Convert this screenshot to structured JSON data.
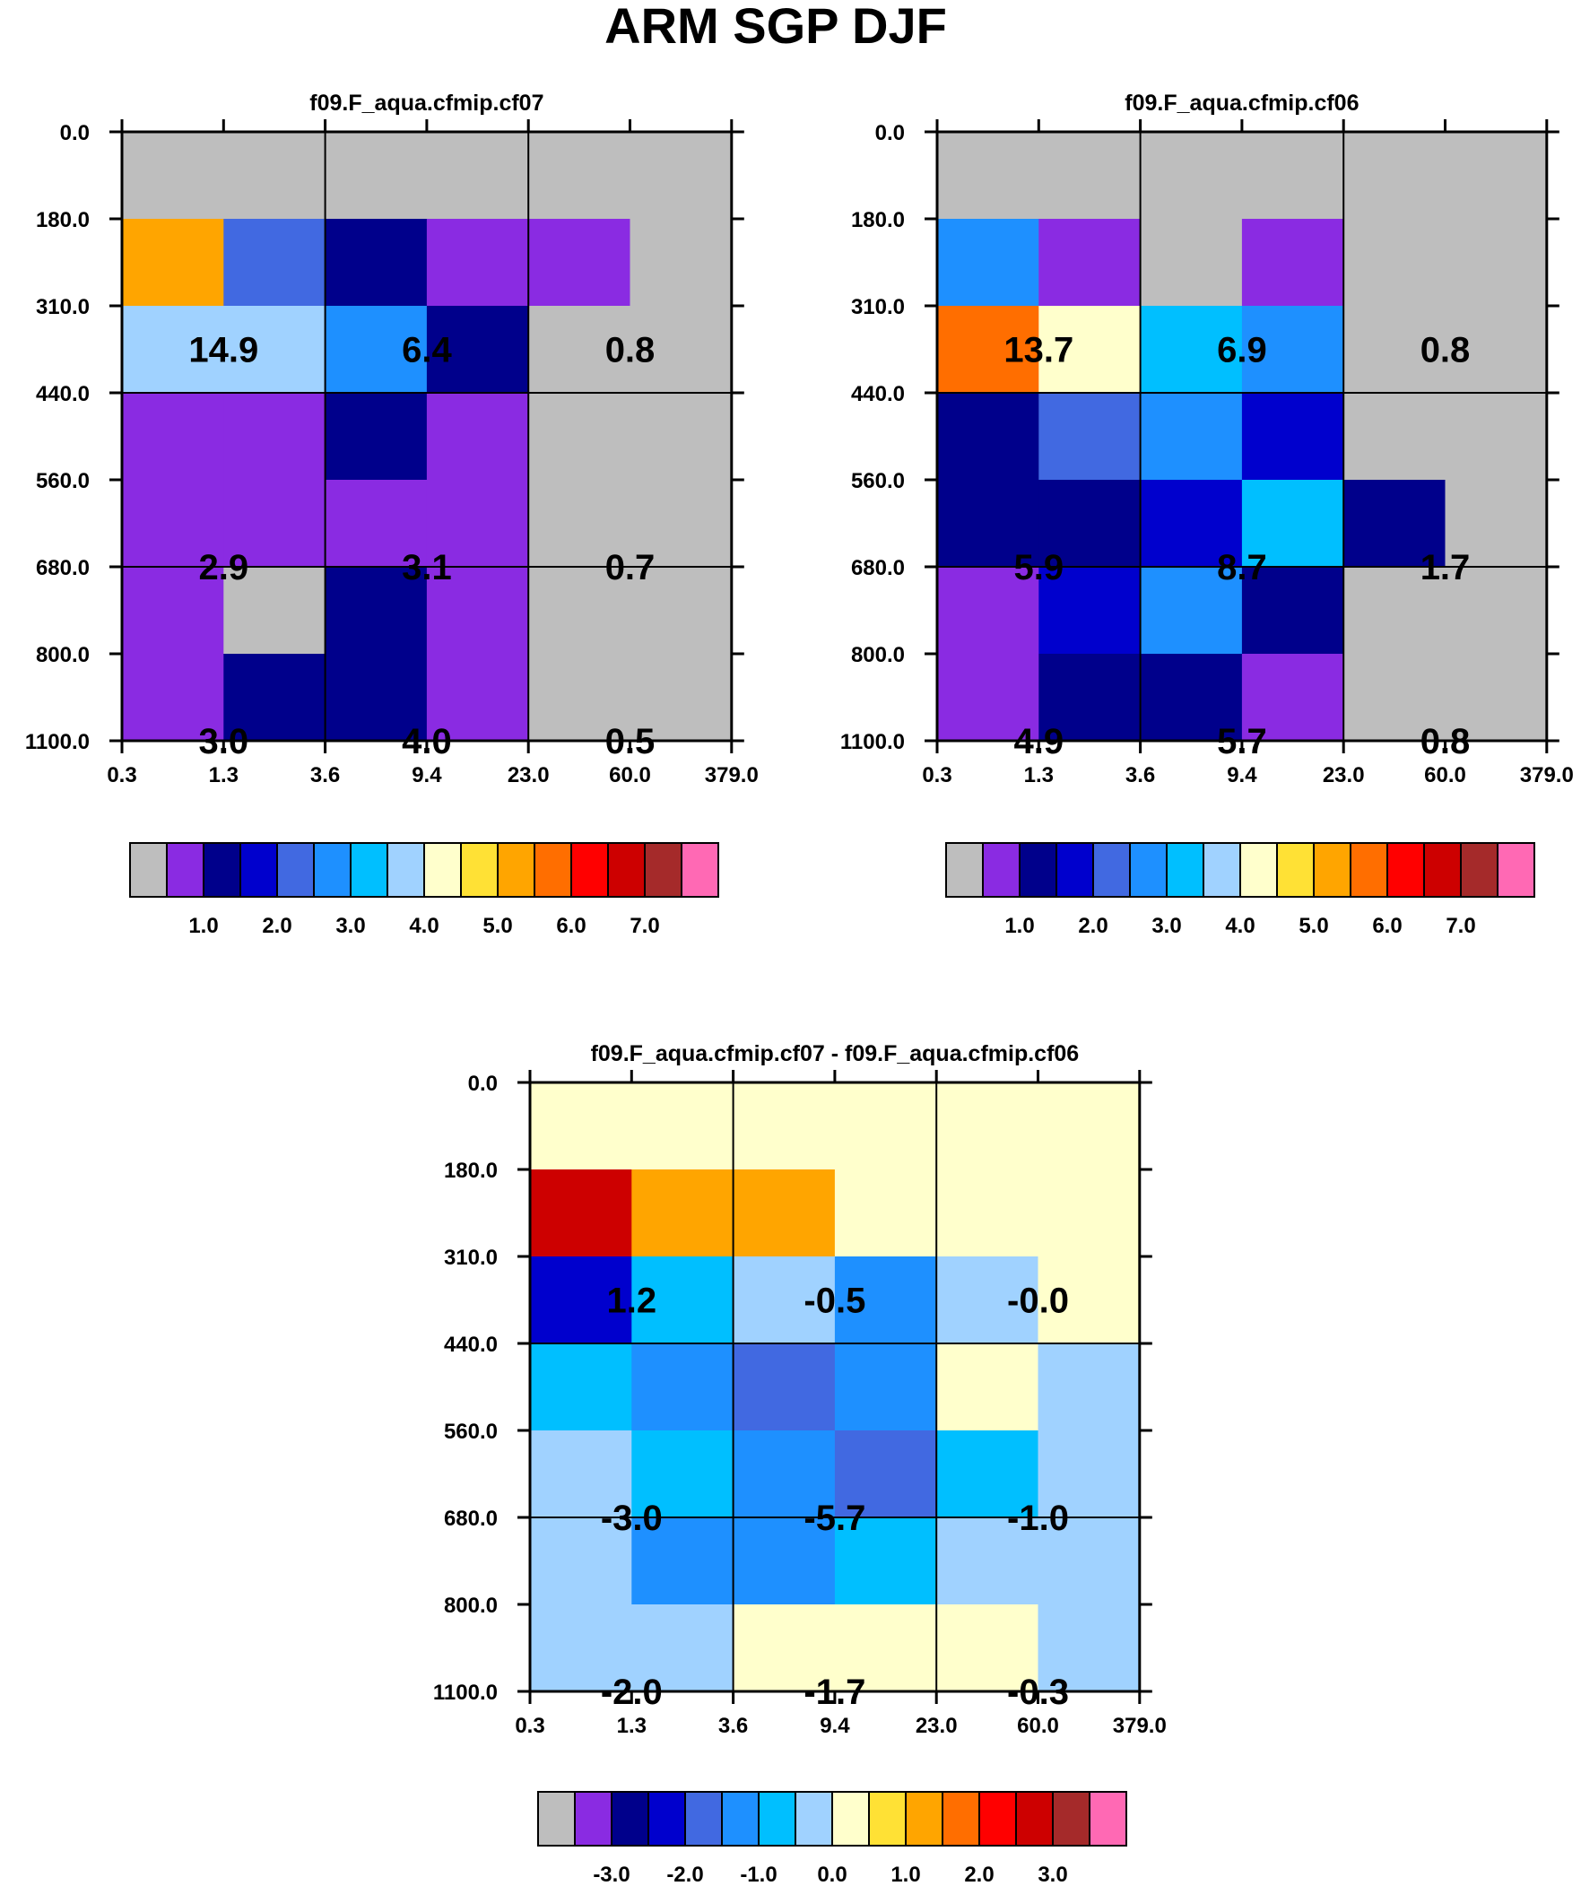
{
  "figure_title": "ARM SGP DJF",
  "colors": {
    "palette": [
      "#bebebe",
      "#8a2be2",
      "#00008b",
      "#0000cd",
      "#4169e1",
      "#1e90ff",
      "#00bfff",
      "#a0d2ff",
      "#ffffcc",
      "#ffe135",
      "#ffa500",
      "#ff6e00",
      "#ff0000",
      "#cd0000",
      "#a52a2a",
      "#ff69b4"
    ],
    "grid": "#000000"
  },
  "chart_data": [
    {
      "type": "heatmap",
      "title": "f09.F_aqua.cfmip.cf07",
      "x_ticks": [
        "0.3",
        "1.3",
        "3.6",
        "9.4",
        "23.0",
        "60.0",
        "379.0"
      ],
      "y_ticks": [
        "0.0",
        "180.0",
        "310.0",
        "440.0",
        "560.0",
        "680.0",
        "800.0",
        "1100.0"
      ],
      "cells": [
        [
          0,
          0,
          0,
          0,
          0,
          0
        ],
        [
          10,
          4,
          2,
          1,
          1,
          0
        ],
        [
          7,
          7,
          5,
          2,
          0,
          0
        ],
        [
          1,
          1,
          2,
          1,
          0,
          0
        ],
        [
          1,
          1,
          1,
          1,
          0,
          0
        ],
        [
          1,
          0,
          2,
          1,
          0,
          0
        ],
        [
          1,
          2,
          2,
          1,
          0,
          0
        ]
      ],
      "block_values": [
        [
          "14.9",
          "6.4",
          "0.8"
        ],
        [
          "2.9",
          "3.1",
          "0.7"
        ],
        [
          "3.0",
          "4.0",
          "0.5"
        ]
      ],
      "colorbar_labels": [
        "1.0",
        "2.0",
        "3.0",
        "4.0",
        "5.0",
        "6.0",
        "7.0"
      ]
    },
    {
      "type": "heatmap",
      "title": "f09.F_aqua.cfmip.cf06",
      "x_ticks": [
        "0.3",
        "1.3",
        "3.6",
        "9.4",
        "23.0",
        "60.0",
        "379.0"
      ],
      "y_ticks": [
        "0.0",
        "180.0",
        "310.0",
        "440.0",
        "560.0",
        "680.0",
        "800.0",
        "1100.0"
      ],
      "cells": [
        [
          0,
          0,
          0,
          0,
          0,
          0
        ],
        [
          5,
          1,
          0,
          1,
          0,
          0
        ],
        [
          11,
          8,
          6,
          5,
          0,
          0
        ],
        [
          2,
          4,
          5,
          3,
          0,
          0
        ],
        [
          2,
          2,
          3,
          6,
          2,
          0
        ],
        [
          1,
          3,
          5,
          2,
          0,
          0
        ],
        [
          1,
          2,
          2,
          1,
          0,
          0
        ]
      ],
      "block_values": [
        [
          "13.7",
          "6.9",
          "0.8"
        ],
        [
          "5.9",
          "8.7",
          "1.7"
        ],
        [
          "4.9",
          "5.7",
          "0.8"
        ]
      ],
      "colorbar_labels": [
        "1.0",
        "2.0",
        "3.0",
        "4.0",
        "5.0",
        "6.0",
        "7.0"
      ]
    },
    {
      "type": "heatmap",
      "title": "f09.F_aqua.cfmip.cf07 - f09.F_aqua.cfmip.cf06",
      "x_ticks": [
        "0.3",
        "1.3",
        "3.6",
        "9.4",
        "23.0",
        "60.0",
        "379.0"
      ],
      "y_ticks": [
        "0.0",
        "180.0",
        "310.0",
        "440.0",
        "560.0",
        "680.0",
        "800.0",
        "1100.0"
      ],
      "cells": [
        [
          8,
          8,
          8,
          8,
          8,
          8
        ],
        [
          13,
          10,
          10,
          8,
          8,
          8
        ],
        [
          3,
          6,
          7,
          5,
          7,
          8
        ],
        [
          6,
          5,
          4,
          5,
          8,
          7
        ],
        [
          7,
          6,
          5,
          4,
          6,
          7
        ],
        [
          7,
          5,
          5,
          6,
          7,
          7
        ],
        [
          7,
          7,
          8,
          8,
          8,
          7
        ]
      ],
      "block_values": [
        [
          "1.2",
          "-0.5",
          "-0.0"
        ],
        [
          "-3.0",
          "-5.7",
          "-1.0"
        ],
        [
          "-2.0",
          "-1.7",
          "-0.3"
        ]
      ],
      "colorbar_labels": [
        "-3.0",
        "-2.0",
        "-1.0",
        "0.0",
        "1.0",
        "2.0",
        "3.0"
      ]
    }
  ]
}
